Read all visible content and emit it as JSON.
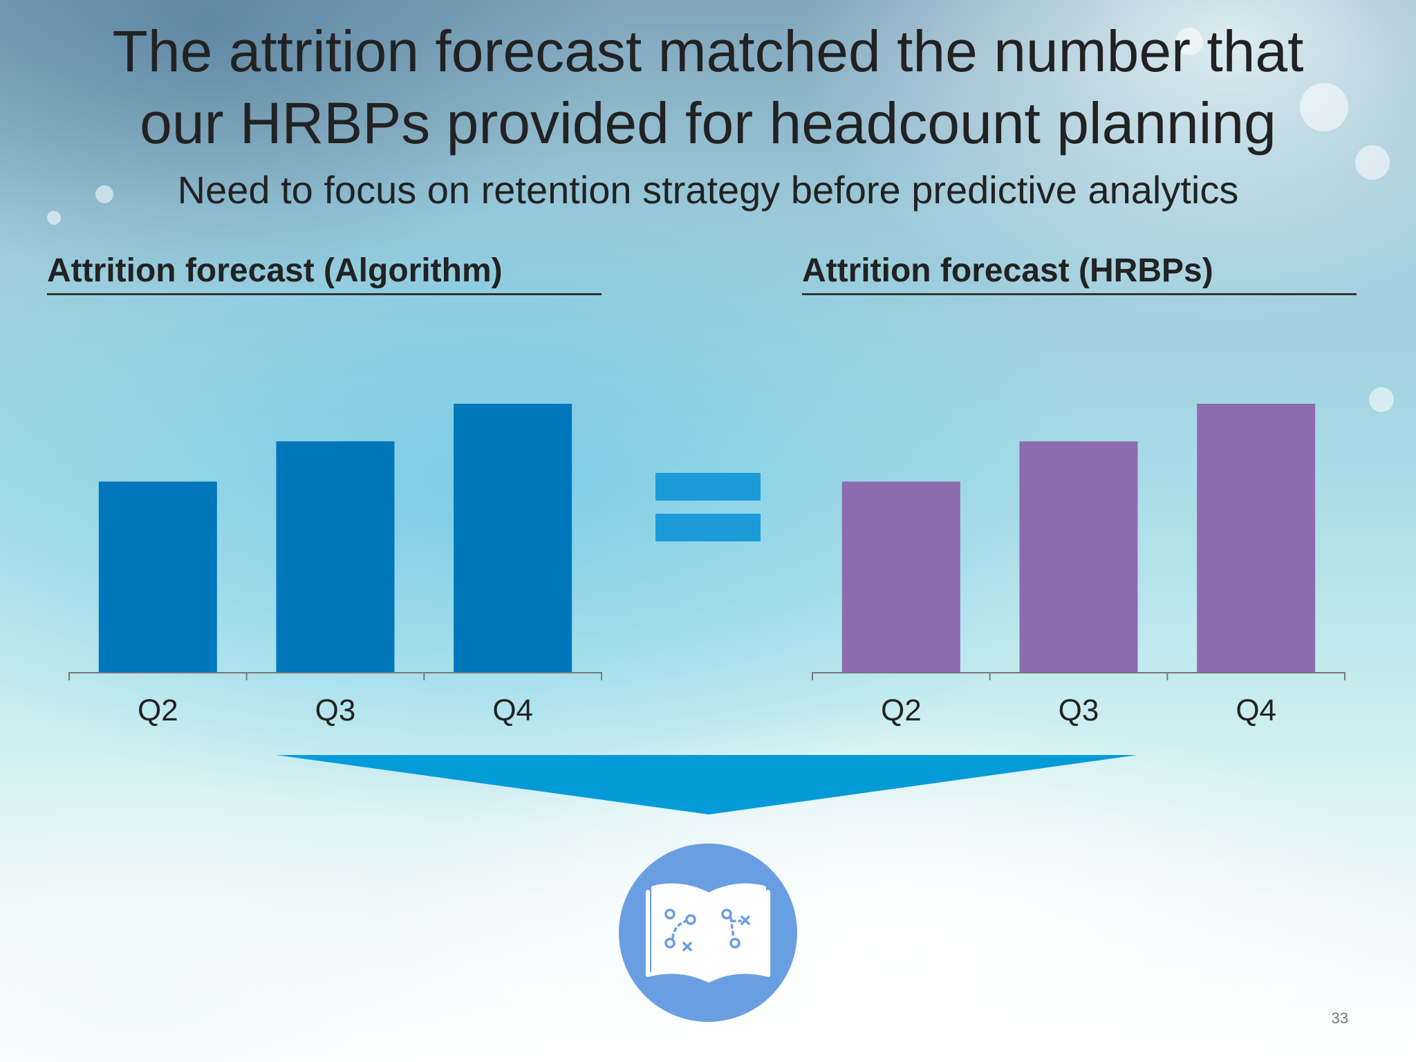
{
  "slide": {
    "title_line1": "The attrition forecast matched the number that",
    "title_line2": "our HRBPs provided for headcount planning",
    "subtitle": "Need to focus on retention strategy before predictive analytics",
    "page_number": "33"
  },
  "icons": {
    "equals": "equals-sign-icon",
    "arrow": "funnel-arrow-down-icon",
    "playbook": "playbook-book-icon"
  },
  "colors": {
    "algorithm_bars": "#0077bb",
    "hrbp_bars": "#8e6baf",
    "equals": "#1a9bd7",
    "arrow": "#029bd8",
    "playbook_circle": "#6a9ee3"
  },
  "chart_data": [
    {
      "type": "bar",
      "title": "Attrition forecast (Algorithm)",
      "categories": [
        "Q2",
        "Q3",
        "Q4"
      ],
      "values": [
        71,
        86,
        100
      ],
      "ylim": [
        0,
        100
      ],
      "grid": false,
      "legend": "none",
      "xlabel": "",
      "ylabel": ""
    },
    {
      "type": "bar",
      "title": "Attrition forecast (HRBPs)",
      "categories": [
        "Q2",
        "Q3",
        "Q4"
      ],
      "values": [
        71,
        86,
        100
      ],
      "ylim": [
        0,
        100
      ],
      "grid": false,
      "legend": "none",
      "xlabel": "",
      "ylabel": ""
    }
  ]
}
